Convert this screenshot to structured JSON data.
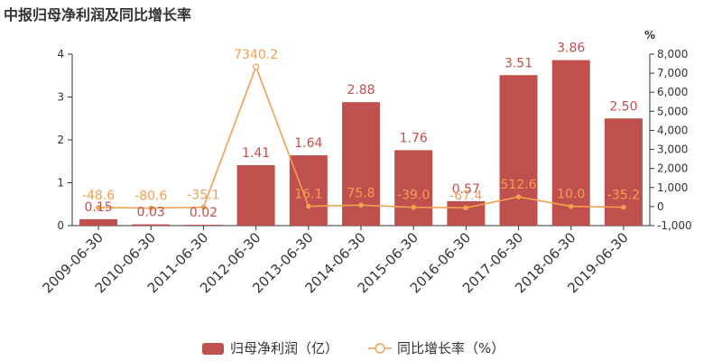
{
  "title": "中报归母净利润及同比增长率",
  "colors": {
    "bar": "#c0504d",
    "line": "#f0a050",
    "axis": "#333333"
  },
  "chart_data": {
    "type": "bar",
    "title": "中报归母净利润及同比增长率",
    "categories": [
      "2009-06-30",
      "2010-06-30",
      "2011-06-30",
      "2012-06-30",
      "2013-06-30",
      "2014-06-30",
      "2015-06-30",
      "2016-06-30",
      "2017-06-30",
      "2018-06-30",
      "2019-06-30"
    ],
    "series": [
      {
        "name": "归母净利润（亿）",
        "type": "bar",
        "axis": "left",
        "values": [
          0.15,
          0.03,
          0.02,
          1.41,
          1.64,
          2.88,
          1.76,
          0.57,
          3.51,
          3.86,
          2.5
        ],
        "labels": [
          "0.15",
          "0.03",
          "0.02",
          "1.41",
          "1.64",
          "2.88",
          "1.76",
          "0.57",
          "3.51",
          "3.86",
          "2.50"
        ]
      },
      {
        "name": "同比增长率（%）",
        "type": "line",
        "axis": "right",
        "values": [
          -48.6,
          -80.6,
          -35.1,
          7340.2,
          16.1,
          75.8,
          -39.0,
          -67.4,
          512.6,
          10.0,
          -35.2
        ],
        "labels": [
          "-48.6",
          "-80.6",
          "-35.1",
          "7340.2",
          "16.1",
          "75.8",
          "-39.0",
          "-67.4",
          "512.6",
          "10.0",
          "-35.2"
        ]
      }
    ],
    "y_left": {
      "range": [
        0,
        4
      ],
      "ticks": [
        "0",
        "1",
        "2",
        "3",
        "4"
      ]
    },
    "y_right": {
      "unit": "%",
      "range": [
        -1000,
        8000
      ],
      "ticks": [
        "-1,000",
        "0",
        "1,000",
        "2,000",
        "3,000",
        "4,000",
        "5,000",
        "6,000",
        "7,000",
        "8,000"
      ]
    },
    "grid": false,
    "legend": "bottom"
  }
}
